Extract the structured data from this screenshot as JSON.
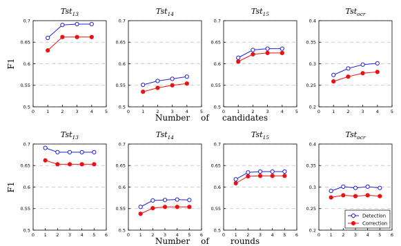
{
  "colors": {
    "detection": "#1f1fd6",
    "correction": "#ee1111",
    "grid": "#bdbdbd"
  },
  "rows": [
    {
      "xlabel_words": [
        "Number",
        "of",
        "candidates"
      ],
      "ylabel": "F1"
    },
    {
      "xlabel_words": [
        "Number",
        "of",
        "rounds"
      ],
      "ylabel": "F1"
    }
  ],
  "chart_data": [
    {
      "type": "line",
      "title_base": "Tst",
      "title_sub": "13",
      "xlim": [
        0,
        5
      ],
      "ylim": [
        0.5,
        0.7
      ],
      "xticks": [
        "0",
        "1",
        "2",
        "3",
        "4",
        "5"
      ],
      "yticks": [
        "0.5",
        "0.55",
        "0.6",
        "0.65",
        "0.7"
      ],
      "x": [
        1,
        2,
        3,
        4
      ],
      "series": [
        {
          "name": "Detection",
          "marker": "open-circle",
          "values": [
            0.66,
            0.69,
            0.692,
            0.692
          ]
        },
        {
          "name": "Correction",
          "marker": "filled-circle",
          "values": [
            0.631,
            0.662,
            0.662,
            0.662
          ]
        }
      ]
    },
    {
      "type": "line",
      "title_base": "Tst",
      "title_sub": "14",
      "xlim": [
        0,
        5
      ],
      "ylim": [
        0.5,
        0.7
      ],
      "xticks": [
        "0",
        "1",
        "2",
        "3",
        "4",
        "5"
      ],
      "yticks": [
        "0.5",
        "0.55",
        "0.6",
        "0.65",
        "0.7"
      ],
      "x": [
        1,
        2,
        3,
        4
      ],
      "series": [
        {
          "name": "Detection",
          "marker": "open-circle",
          "values": [
            0.551,
            0.56,
            0.565,
            0.57
          ]
        },
        {
          "name": "Correction",
          "marker": "filled-circle",
          "values": [
            0.535,
            0.544,
            0.55,
            0.554
          ]
        }
      ]
    },
    {
      "type": "line",
      "title_base": "Tst",
      "title_sub": "15",
      "xlim": [
        0,
        5
      ],
      "ylim": [
        0.5,
        0.7
      ],
      "xticks": [
        "0",
        "1",
        "2",
        "3",
        "4",
        "5"
      ],
      "yticks": [
        "0.5",
        "0.55",
        "0.6",
        "0.65",
        "0.7"
      ],
      "x": [
        1,
        2,
        3,
        4
      ],
      "series": [
        {
          "name": "Detection",
          "marker": "open-circle",
          "values": [
            0.614,
            0.632,
            0.635,
            0.635
          ]
        },
        {
          "name": "Correction",
          "marker": "filled-circle",
          "values": [
            0.605,
            0.622,
            0.625,
            0.625
          ]
        }
      ]
    },
    {
      "type": "line",
      "title_base": "Tst",
      "title_sub": "ocr",
      "xlim": [
        0,
        5
      ],
      "ylim": [
        0.2,
        0.4
      ],
      "xticks": [
        "0",
        "1",
        "2",
        "3",
        "4",
        "5"
      ],
      "yticks": [
        "0.2",
        "0.25",
        "0.3",
        "0.35",
        "0.4"
      ],
      "x": [
        1,
        2,
        3,
        4
      ],
      "series": [
        {
          "name": "Detection",
          "marker": "open-circle",
          "values": [
            0.274,
            0.289,
            0.298,
            0.301
          ]
        },
        {
          "name": "Correction",
          "marker": "filled-circle",
          "values": [
            0.259,
            0.27,
            0.278,
            0.281
          ]
        }
      ]
    },
    {
      "type": "line",
      "title_base": "Tst",
      "title_sub": "13",
      "xlim": [
        0,
        6
      ],
      "ylim": [
        0.5,
        0.7
      ],
      "xticks": [
        "0",
        "1",
        "2",
        "3",
        "4",
        "5",
        "6"
      ],
      "yticks": [
        "0.5",
        "0.55",
        "0.6",
        "0.65",
        "0.7"
      ],
      "x": [
        1,
        2,
        3,
        4,
        5
      ],
      "series": [
        {
          "name": "Detection",
          "marker": "open-circle",
          "values": [
            0.691,
            0.681,
            0.681,
            0.681,
            0.681
          ]
        },
        {
          "name": "Correction",
          "marker": "filled-circle",
          "values": [
            0.662,
            0.653,
            0.653,
            0.653,
            0.653
          ]
        }
      ]
    },
    {
      "type": "line",
      "title_base": "Tst",
      "title_sub": "14",
      "xlim": [
        0,
        6
      ],
      "ylim": [
        0.5,
        0.7
      ],
      "xticks": [
        "0",
        "1",
        "2",
        "3",
        "4",
        "5",
        "6"
      ],
      "yticks": [
        "0.5",
        "0.55",
        "0.6",
        "0.65",
        "0.7"
      ],
      "x": [
        1,
        2,
        3,
        4,
        5
      ],
      "series": [
        {
          "name": "Detection",
          "marker": "open-circle",
          "values": [
            0.554,
            0.569,
            0.57,
            0.571,
            0.57
          ]
        },
        {
          "name": "Correction",
          "marker": "filled-circle",
          "values": [
            0.538,
            0.551,
            0.554,
            0.554,
            0.554
          ]
        }
      ]
    },
    {
      "type": "line",
      "title_base": "Tst",
      "title_sub": "15",
      "xlim": [
        0,
        6
      ],
      "ylim": [
        0.5,
        0.7
      ],
      "xticks": [
        "0",
        "1",
        "2",
        "3",
        "4",
        "5",
        "6"
      ],
      "yticks": [
        "0.5",
        "0.55",
        "0.6",
        "0.65",
        "0.7"
      ],
      "x": [
        1,
        2,
        3,
        4,
        5
      ],
      "series": [
        {
          "name": "Detection",
          "marker": "open-circle",
          "values": [
            0.618,
            0.634,
            0.636,
            0.636,
            0.636
          ]
        },
        {
          "name": "Correction",
          "marker": "filled-circle",
          "values": [
            0.609,
            0.625,
            0.626,
            0.626,
            0.626
          ]
        }
      ]
    },
    {
      "type": "line",
      "title_base": "Tst",
      "title_sub": "ocr",
      "xlim": [
        0,
        6
      ],
      "ylim": [
        0.2,
        0.4
      ],
      "xticks": [
        "0",
        "1",
        "2",
        "3",
        "4",
        "5",
        "6"
      ],
      "yticks": [
        "0.2",
        "0.25",
        "0.3",
        "0.35",
        "0.4"
      ],
      "x": [
        1,
        2,
        3,
        4,
        5
      ],
      "legend": "lower-right",
      "series": [
        {
          "name": "Detection",
          "marker": "open-circle",
          "values": [
            0.291,
            0.301,
            0.298,
            0.301,
            0.298
          ]
        },
        {
          "name": "Correction",
          "marker": "filled-circle",
          "values": [
            0.276,
            0.281,
            0.279,
            0.281,
            0.279
          ]
        }
      ]
    }
  ]
}
